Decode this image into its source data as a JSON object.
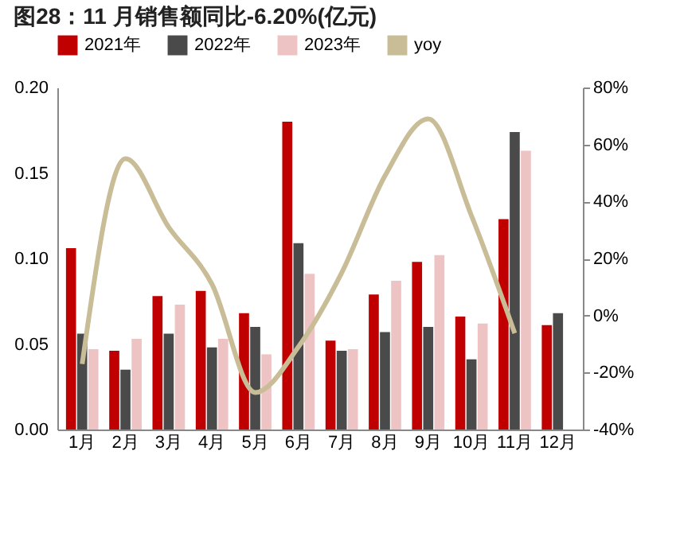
{
  "chart_data": {
    "type": "bar",
    "title": "图28：11 月销售额同比-6.20%(亿元)",
    "categories": [
      "1月",
      "2月",
      "3月",
      "4月",
      "5月",
      "6月",
      "7月",
      "8月",
      "9月",
      "10月",
      "11月",
      "12月"
    ],
    "series": [
      {
        "name": "2021年",
        "color": "#c00000",
        "values": [
          0.106,
          0.046,
          0.078,
          0.081,
          0.068,
          0.18,
          0.052,
          0.079,
          0.098,
          0.066,
          0.123,
          0.061
        ]
      },
      {
        "name": "2022年",
        "color": "#4a4a4a",
        "values": [
          0.056,
          0.035,
          0.056,
          0.048,
          0.06,
          0.109,
          0.046,
          0.057,
          0.06,
          0.041,
          0.174,
          0.068
        ]
      },
      {
        "name": "2023年",
        "color": "#eec3c3",
        "values": [
          0.047,
          0.053,
          0.073,
          0.053,
          0.044,
          0.091,
          0.047,
          0.087,
          0.102,
          0.062,
          0.163,
          null
        ]
      },
      {
        "name": "yoy",
        "type": "line",
        "axis": "y2",
        "color": "#c8bd97",
        "values": [
          -17,
          55,
          31,
          11,
          -27,
          -11,
          15,
          49,
          69,
          35,
          -6.2,
          null
        ]
      }
    ],
    "ylim": [
      0,
      0.2
    ],
    "yticks": [
      {
        "value": 0,
        "label": "0.00"
      },
      {
        "value": 0.05,
        "label": "0.05"
      },
      {
        "value": 0.1,
        "label": "0.10"
      },
      {
        "value": 0.15,
        "label": "0.15"
      },
      {
        "value": 0.2,
        "label": "0.20"
      }
    ],
    "y2lim": [
      -40,
      80
    ],
    "y2ticks": [
      {
        "value": -40,
        "label": "-40%"
      },
      {
        "value": -20,
        "label": "-20%"
      },
      {
        "value": 0,
        "label": "0%"
      },
      {
        "value": 20,
        "label": "20%"
      },
      {
        "value": 40,
        "label": "40%"
      },
      {
        "value": 60,
        "label": "60%"
      },
      {
        "value": 80,
        "label": "80%"
      }
    ],
    "legend": "top",
    "grid": false
  }
}
